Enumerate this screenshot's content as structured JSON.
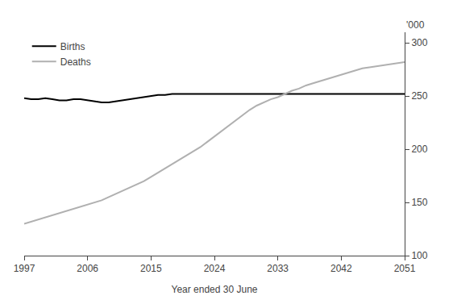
{
  "chart_data": {
    "type": "line",
    "xlabel": "Year ended 30 June",
    "ylabel": "'000",
    "x": [
      1997,
      1998,
      1999,
      2000,
      2001,
      2002,
      2003,
      2004,
      2005,
      2006,
      2007,
      2008,
      2009,
      2010,
      2011,
      2012,
      2013,
      2014,
      2015,
      2016,
      2017,
      2018,
      2019,
      2020,
      2021,
      2022,
      2023,
      2024,
      2025,
      2026,
      2027,
      2028,
      2029,
      2030,
      2031,
      2032,
      2033,
      2034,
      2035,
      2036,
      2037,
      2038,
      2039,
      2040,
      2041,
      2042,
      2043,
      2044,
      2045,
      2046,
      2047,
      2048,
      2049,
      2050,
      2051
    ],
    "series": [
      {
        "name": "Births",
        "color": "#000000",
        "values": [
          248,
          247,
          247,
          248,
          247,
          246,
          246,
          247,
          247,
          246,
          245,
          244,
          244,
          245,
          246,
          247,
          248,
          249,
          250,
          251,
          251,
          252,
          252,
          252,
          252,
          252,
          252,
          252,
          252,
          252,
          252,
          252,
          252,
          252,
          252,
          252,
          252,
          252,
          252,
          252,
          252,
          252,
          252,
          252,
          252,
          252,
          252,
          252,
          252,
          252,
          252,
          252,
          252,
          252,
          252
        ]
      },
      {
        "name": "Deaths",
        "color": "#b0b0b0",
        "values": [
          130,
          132,
          134,
          136,
          138,
          140,
          142,
          144,
          146,
          148,
          150,
          152,
          155,
          158,
          161,
          164,
          167,
          170,
          174,
          178,
          182,
          186,
          190,
          194,
          198,
          202,
          207,
          212,
          217,
          222,
          227,
          232,
          237,
          241,
          244,
          247,
          249,
          252,
          255,
          257,
          260,
          262,
          264,
          266,
          268,
          270,
          272,
          274,
          276,
          277,
          278,
          279,
          280,
          281,
          282
        ]
      }
    ],
    "xlim": [
      1997,
      2051
    ],
    "ylim": [
      100,
      310
    ],
    "xticks": [
      1997,
      2006,
      2015,
      2024,
      2033,
      2042,
      2051
    ],
    "yticks": [
      100,
      150,
      200,
      250,
      300
    ],
    "grid": false,
    "legend": "upper left"
  }
}
